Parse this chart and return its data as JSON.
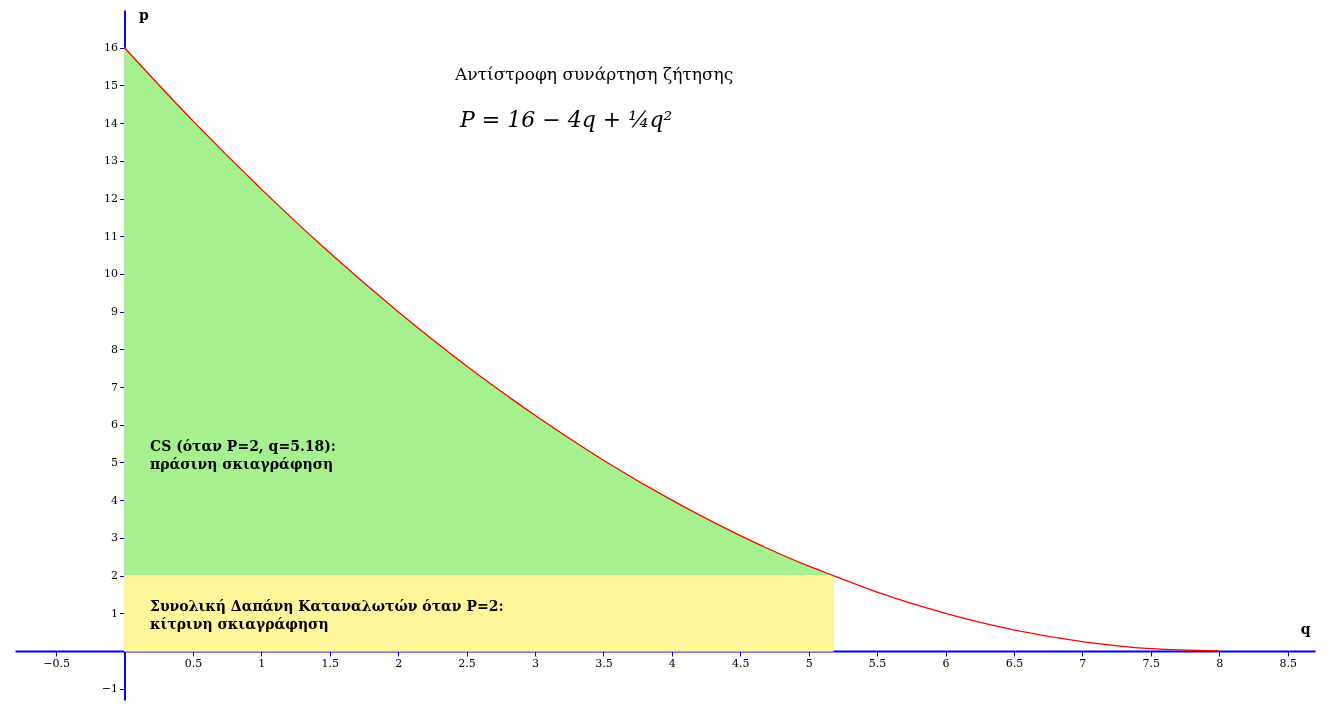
{
  "chart_data": {
    "type": "line",
    "xlabel": "q",
    "ylabel": "p",
    "annotations": [
      "Αντίστροφη συνάρτηση ζήτησης",
      "P = 16 − 4q + ¼q²",
      "CS (όταν P=2, q=5.18):\nπράσινη σκιαγράφηση",
      "Συνολική Δαπάνη Καταναλωτών όταν P=2:\nκίτρινη σκιαγράφηση"
    ],
    "series": [
      {
        "type": "area",
        "color": "#a6f08f",
        "x": [
          0,
          0.5,
          1,
          1.5,
          2,
          2.5,
          3,
          3.5,
          4,
          4.5,
          5,
          5.18
        ],
        "values": [
          16,
          14.06,
          12.25,
          10.56,
          9,
          7.56,
          6.25,
          5.06,
          4,
          3.06,
          2.25,
          2
        ]
      },
      {
        "type": "area",
        "color": "#fff59a",
        "x": [
          0,
          5.18
        ],
        "values": [
          2,
          2
        ]
      },
      {
        "color": "#ff0000",
        "x": [
          0,
          0.5,
          1,
          1.5,
          2,
          2.5,
          3,
          3.5,
          4,
          4.5,
          5,
          5.18,
          5.5,
          6,
          6.5,
          7,
          7.5,
          8
        ],
        "values": [
          16,
          14.06,
          12.25,
          10.56,
          9,
          7.56,
          6.25,
          5.06,
          4,
          3.06,
          2.25,
          2,
          1.56,
          1,
          0.56,
          0.25,
          0.06,
          0
        ]
      }
    ],
    "xlim": [
      -0.8,
      8.7
    ],
    "ylim": [
      -1.3,
      17
    ],
    "xticks": [
      -0.5,
      0.5,
      1,
      1.5,
      2,
      2.5,
      3,
      3.5,
      4,
      4.5,
      5,
      5.5,
      6,
      6.5,
      7,
      7.5,
      8,
      8.5
    ],
    "yticks": [
      -1,
      1,
      2,
      3,
      4,
      5,
      6,
      7,
      8,
      9,
      10,
      11,
      12,
      13,
      14,
      15,
      16
    ],
    "grid": false
  }
}
